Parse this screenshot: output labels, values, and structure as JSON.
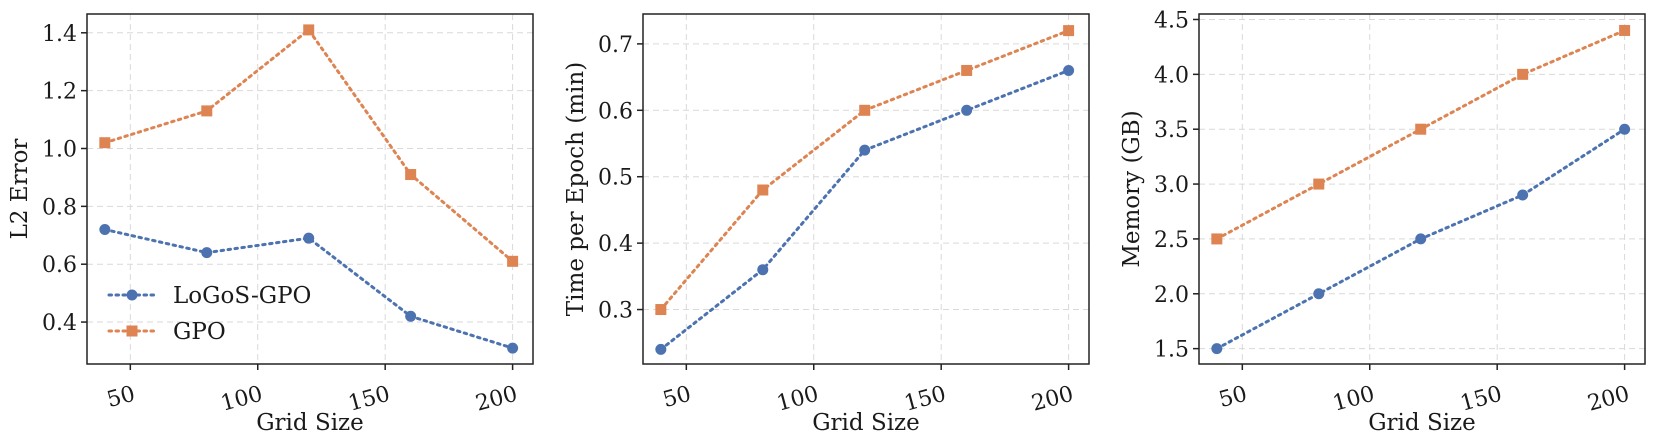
{
  "colors": {
    "logos": "#4c72b0",
    "gpo": "#dd8452",
    "grid": "#d9d9d9",
    "axis": "#222222"
  },
  "chart_data": [
    {
      "type": "line",
      "title": "",
      "xlabel": "Grid Size",
      "ylabel": "L2 Error",
      "x": [
        40,
        80,
        120,
        160,
        200
      ],
      "xlim": [
        33,
        208
      ],
      "ylim": [
        0.255,
        1.465
      ],
      "xticks": [
        50,
        100,
        150,
        200
      ],
      "xtick_labels": [
        "50",
        "100",
        "150",
        "200"
      ],
      "yticks": [
        0.4,
        0.6,
        0.8,
        1.0,
        1.2,
        1.4
      ],
      "ytick_labels": [
        "0.4",
        "0.6",
        "0.8",
        "1.0",
        "1.2",
        "1.4"
      ],
      "grid": true,
      "legend": "lower-left",
      "series": [
        {
          "name": "LoGoS-GPO",
          "marker": "circle",
          "values": [
            0.72,
            0.64,
            0.69,
            0.42,
            0.31
          ]
        },
        {
          "name": "GPO",
          "marker": "square",
          "values": [
            1.02,
            1.13,
            1.41,
            0.91,
            0.61
          ]
        }
      ]
    },
    {
      "type": "line",
      "title": "",
      "xlabel": "Grid Size",
      "ylabel": "Time per Epoch (min)",
      "x": [
        40,
        80,
        120,
        160,
        200
      ],
      "xlim": [
        33,
        208
      ],
      "ylim": [
        0.218,
        0.745
      ],
      "xticks": [
        50,
        100,
        150,
        200
      ],
      "xtick_labels": [
        "50",
        "100",
        "150",
        "200"
      ],
      "yticks": [
        0.3,
        0.4,
        0.5,
        0.6,
        0.7
      ],
      "ytick_labels": [
        "0.3",
        "0.4",
        "0.5",
        "0.6",
        "0.7"
      ],
      "grid": true,
      "series": [
        {
          "name": "LoGoS-GPO",
          "marker": "circle",
          "values": [
            0.24,
            0.36,
            0.54,
            0.6,
            0.66
          ]
        },
        {
          "name": "GPO",
          "marker": "square",
          "values": [
            0.3,
            0.48,
            0.6,
            0.66,
            0.72
          ]
        }
      ]
    },
    {
      "type": "line",
      "title": "",
      "xlabel": "Grid Size",
      "ylabel": "Memory (GB)",
      "x": [
        40,
        80,
        120,
        160,
        200
      ],
      "xlim": [
        33,
        208
      ],
      "ylim": [
        1.36,
        4.55
      ],
      "xticks": [
        50,
        100,
        150,
        200
      ],
      "xtick_labels": [
        "50",
        "100",
        "150",
        "200"
      ],
      "yticks": [
        1.5,
        2.0,
        2.5,
        3.0,
        3.5,
        4.0,
        4.5
      ],
      "ytick_labels": [
        "1.5",
        "2.0",
        "2.5",
        "3.0",
        "3.5",
        "4.0",
        "4.5"
      ],
      "grid": true,
      "series": [
        {
          "name": "LoGoS-GPO",
          "marker": "circle",
          "values": [
            1.5,
            2.0,
            2.5,
            2.9,
            3.5
          ]
        },
        {
          "name": "GPO",
          "marker": "square",
          "values": [
            2.5,
            3.0,
            3.5,
            4.0,
            4.4
          ]
        }
      ]
    }
  ]
}
